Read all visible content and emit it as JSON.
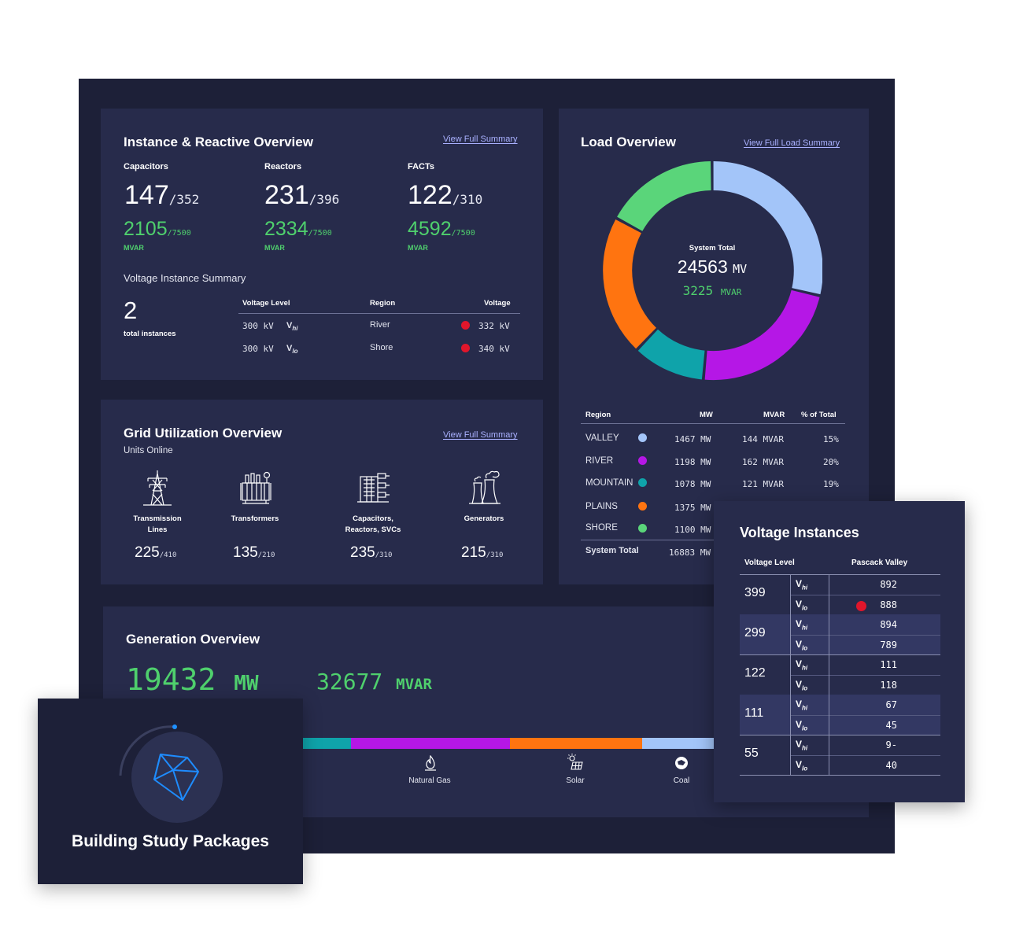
{
  "instance_panel": {
    "title": "Instance & Reactive Overview",
    "link": "View Full Summary",
    "stats": [
      {
        "label": "Capacitors",
        "value": "147",
        "total": "/352",
        "mvar": "2105",
        "mvar_total": "/7500",
        "unit": "MVAR"
      },
      {
        "label": "Reactors",
        "value": "231",
        "total": "/396",
        "mvar": "2334",
        "mvar_total": "/7500",
        "unit": "MVAR"
      },
      {
        "label": "FACTs",
        "value": "122",
        "total": "/310",
        "mvar": "4592",
        "mvar_total": "/7500",
        "unit": "MVAR"
      }
    ],
    "voltage_summary": {
      "title": "Voltage Instance Summary",
      "count": "2",
      "count_label": "total instances",
      "headers": {
        "level": "Voltage Level",
        "region": "Region",
        "voltage": "Voltage"
      },
      "rows": [
        {
          "level": "300 kV",
          "v": "V",
          "sub": "hi",
          "region": "River",
          "voltage": "332 kV"
        },
        {
          "level": "300 kV",
          "v": "V",
          "sub": "lo",
          "region": "Shore",
          "voltage": "340 kV"
        }
      ]
    }
  },
  "grid_panel": {
    "title": "Grid Utilization Overview",
    "subtitle": "Units Online",
    "link": "View Full Summary",
    "units": [
      {
        "label1": "Transmission",
        "label2": "Lines",
        "value": "225",
        "total": "/410",
        "icon": "transmission-tower-icon"
      },
      {
        "label1": "Transformers",
        "label2": "",
        "value": "135",
        "total": "/210",
        "icon": "transformer-icon"
      },
      {
        "label1": "Capacitors,",
        "label2": "Reactors, SVCs",
        "value": "235",
        "total": "/310",
        "icon": "capacitor-bank-icon"
      },
      {
        "label1": "Generators",
        "label2": "",
        "value": "215",
        "total": "/310",
        "icon": "power-plant-icon"
      }
    ]
  },
  "load_panel": {
    "title": "Load Overview",
    "link": "View Full Load Summary",
    "center": {
      "label": "System Total",
      "mw": "24563",
      "mw_unit": "MV",
      "mvar": "3225",
      "mvar_unit": "MVAR"
    },
    "headers": {
      "region": "Region",
      "mw": "MW",
      "mvar": "MVAR",
      "pct": "% of Total"
    },
    "rows": [
      {
        "region": "VALLEY",
        "color": "#a3c5f9",
        "mw": "1467 MW",
        "mvar": "144 MVAR",
        "pct": "15%"
      },
      {
        "region": "RIVER",
        "color": "#b517e6",
        "mw": "1198 MW",
        "mvar": "162 MVAR",
        "pct": "20%"
      },
      {
        "region": "MOUNTAIN",
        "color": "#0fa3aa",
        "mw": "1078 MW",
        "mvar": "121 MVAR",
        "pct": "19%"
      },
      {
        "region": "PLAINS",
        "color": "#ff7410",
        "mw": "1375 MW",
        "mvar": "",
        "pct": ""
      },
      {
        "region": "SHORE",
        "color": "#5ad57a",
        "mw": "1100 MW",
        "mvar": "",
        "pct": ""
      }
    ],
    "total": {
      "label": "System Total",
      "mw": "16883 MW"
    }
  },
  "gen_panel": {
    "title": "Generation Overview",
    "mw": "19432",
    "mw_unit": "MW",
    "mvar": "32677",
    "mvar_unit": "MVAR",
    "labels": [
      {
        "name": "Natural Gas",
        "icon": "flame-icon"
      },
      {
        "name": "Solar",
        "icon": "solar-panel-icon"
      },
      {
        "name": "Coal",
        "icon": "coal-icon"
      }
    ]
  },
  "voltage_card": {
    "title": "Voltage Instances",
    "headers": {
      "level": "Voltage Level",
      "region": "Pascack Valley"
    },
    "rows": [
      {
        "level": "399",
        "hi": "892",
        "lo": "888",
        "alert": "lo"
      },
      {
        "level": "299",
        "hi": "894",
        "lo": "789",
        "alert": ""
      },
      {
        "level": "122",
        "hi": "111",
        "lo": "118",
        "alert": ""
      },
      {
        "level": "111",
        "hi": "67",
        "lo": "45",
        "alert": ""
      },
      {
        "level": "55",
        "hi": "9-",
        "lo": "40",
        "alert": ""
      }
    ],
    "v": "V",
    "hi": "hi",
    "lo": "lo"
  },
  "package_card": {
    "title": "Building Study Packages",
    "icon": "polyhedron-icon"
  },
  "colors": {
    "frame": "#1d2038",
    "panel": "#272b4b",
    "green": "#4fd06d",
    "link": "#aab1ff",
    "alert": "#e0162b",
    "valley": "#a3c5f9",
    "river": "#b517e6",
    "mountain": "#0fa3aa",
    "plains": "#ff7410",
    "shore": "#5ad57a"
  }
}
